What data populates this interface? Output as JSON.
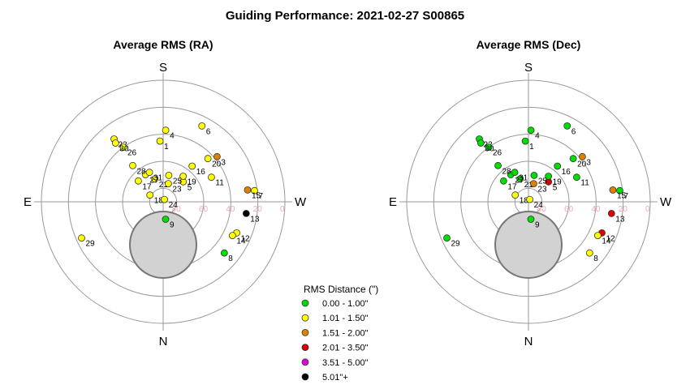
{
  "title": "Guiding Performance: 2021-02-27  S00865",
  "chart_data": {
    "type": "scatter",
    "title": "Guiding Performance: 2021-02-27  S00865",
    "projection": "polar (azimuth / altitude sky plot)",
    "cardinal_labels": {
      "top": "S",
      "bottom": "N",
      "left": "E",
      "right": "W"
    },
    "ring_labels": [
      "80",
      "60",
      "40",
      "20",
      "0"
    ],
    "ring_altitudes": [
      80,
      60,
      40,
      20,
      0
    ],
    "obstruction": "shaded disk below pole toward N",
    "legend": {
      "title": "RMS Distance (\")",
      "placement": "bottom-center",
      "entries": [
        {
          "label": "0.00 - 1.00\"",
          "color": "#00e000"
        },
        {
          "label": "1.01 - 1.50\"",
          "color": "#ffff00"
        },
        {
          "label": "1.51 - 2.00\"",
          "color": "#e08000"
        },
        {
          "label": "2.01 - 3.50\"",
          "color": "#e00000"
        },
        {
          "label": "3.51 - 5.00\"",
          "color": "#e000e0"
        },
        {
          "label": "5.01\"+",
          "color": "#000000"
        }
      ]
    },
    "panels": [
      {
        "title": "Average RMS (RA)",
        "points": [
          {
            "id": "1",
            "az": 183,
            "alt": 45,
            "cat": 1
          },
          {
            "id": "3",
            "az": 130,
            "alt": 38,
            "cat": 2
          },
          {
            "id": "4",
            "az": 178,
            "alt": 37,
            "cat": 1
          },
          {
            "id": "5",
            "az": 135,
            "alt": 69,
            "cat": 1
          },
          {
            "id": "6",
            "az": 153,
            "alt": 27,
            "cat": 1
          },
          {
            "id": "7",
            "az": 97,
            "alt": 22,
            "cat": 1
          },
          {
            "id": "8",
            "az": 50,
            "alt": 31,
            "cat": 0
          },
          {
            "id": "9",
            "az": 8,
            "alt": 77,
            "cat": 0
          },
          {
            "id": "11",
            "az": 117,
            "alt": 50,
            "cat": 1
          },
          {
            "id": "12",
            "az": 67,
            "alt": 31,
            "cat": 1
          },
          {
            "id": "13",
            "az": 82,
            "alt": 28,
            "cat": 5
          },
          {
            "id": "14",
            "az": 64,
            "alt": 33,
            "cat": 1
          },
          {
            "id": "15",
            "az": 98,
            "alt": 27,
            "cat": 2
          },
          {
            "id": "16",
            "az": 141,
            "alt": 56,
            "cat": 1
          },
          {
            "id": "17",
            "az": 230,
            "alt": 66,
            "cat": 1
          },
          {
            "id": "18",
            "az": 243,
            "alt": 79,
            "cat": 1
          },
          {
            "id": "19",
            "az": 142,
            "alt": 66,
            "cat": 1
          },
          {
            "id": "20",
            "az": 134,
            "alt": 44,
            "cat": 1
          },
          {
            "id": "21",
            "az": 200,
            "alt": 72,
            "cat": 1
          },
          {
            "id": "22",
            "az": 218,
            "alt": 31,
            "cat": 1
          },
          {
            "id": "23",
            "az": 164,
            "alt": 76,
            "cat": 1
          },
          {
            "id": "24",
            "az": 151,
            "alt": 88,
            "cat": 1
          },
          {
            "id": "25",
            "az": 168,
            "alt": 70,
            "cat": 1
          },
          {
            "id": "26",
            "az": 216,
            "alt": 40,
            "cat": 1
          },
          {
            "id": "27",
            "az": 213,
            "alt": 66,
            "cat": 1
          },
          {
            "id": "28",
            "az": 220,
            "alt": 55,
            "cat": 1
          },
          {
            "id": "29",
            "az": 294,
            "alt": 24,
            "cat": 1
          },
          {
            "id": "30",
            "az": 219,
            "alt": 34,
            "cat": 1
          },
          {
            "id": "31",
            "az": 205,
            "alt": 66,
            "cat": 1
          }
        ]
      },
      {
        "title": "Average RMS (Dec)",
        "points": [
          {
            "id": "1",
            "az": 183,
            "alt": 45,
            "cat": 0
          },
          {
            "id": "3",
            "az": 130,
            "alt": 38,
            "cat": 2
          },
          {
            "id": "4",
            "az": 178,
            "alt": 37,
            "cat": 0
          },
          {
            "id": "5",
            "az": 135,
            "alt": 69,
            "cat": 3
          },
          {
            "id": "6",
            "az": 153,
            "alt": 27,
            "cat": 0
          },
          {
            "id": "7",
            "az": 97,
            "alt": 22,
            "cat": 0
          },
          {
            "id": "8",
            "az": 50,
            "alt": 31,
            "cat": 1
          },
          {
            "id": "9",
            "az": 8,
            "alt": 77,
            "cat": 0
          },
          {
            "id": "11",
            "az": 117,
            "alt": 50,
            "cat": 0
          },
          {
            "id": "12",
            "az": 67,
            "alt": 31,
            "cat": 3
          },
          {
            "id": "13",
            "az": 82,
            "alt": 28,
            "cat": 3
          },
          {
            "id": "14",
            "az": 64,
            "alt": 33,
            "cat": 1
          },
          {
            "id": "15",
            "az": 98,
            "alt": 27,
            "cat": 2
          },
          {
            "id": "16",
            "az": 141,
            "alt": 56,
            "cat": 0
          },
          {
            "id": "17",
            "az": 230,
            "alt": 66,
            "cat": 0
          },
          {
            "id": "18",
            "az": 243,
            "alt": 79,
            "cat": 1
          },
          {
            "id": "19",
            "az": 142,
            "alt": 66,
            "cat": 0
          },
          {
            "id": "20",
            "az": 134,
            "alt": 44,
            "cat": 0
          },
          {
            "id": "21",
            "az": 200,
            "alt": 72,
            "cat": 0
          },
          {
            "id": "22",
            "az": 218,
            "alt": 31,
            "cat": 0
          },
          {
            "id": "23",
            "az": 164,
            "alt": 76,
            "cat": 2
          },
          {
            "id": "24",
            "az": 151,
            "alt": 88,
            "cat": 1
          },
          {
            "id": "25",
            "az": 168,
            "alt": 70,
            "cat": 0
          },
          {
            "id": "26",
            "az": 216,
            "alt": 40,
            "cat": 0
          },
          {
            "id": "27",
            "az": 213,
            "alt": 66,
            "cat": 0
          },
          {
            "id": "28",
            "az": 220,
            "alt": 55,
            "cat": 0
          },
          {
            "id": "29",
            "az": 294,
            "alt": 24,
            "cat": 0
          },
          {
            "id": "30",
            "az": 219,
            "alt": 34,
            "cat": 0
          },
          {
            "id": "31",
            "az": 205,
            "alt": 66,
            "cat": 0
          }
        ]
      }
    ]
  }
}
